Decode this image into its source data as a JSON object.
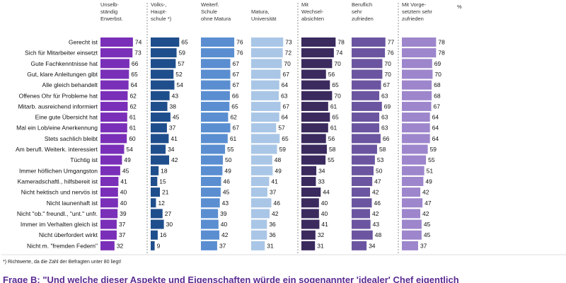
{
  "chart_data": {
    "type": "bar",
    "orientation": "horizontal",
    "title": "",
    "percent_sign": "%",
    "categories": [
      "Gerecht ist",
      "Sich für Mitarbeiter einsetzt",
      "Gute Fachkenntnisse hat",
      "Gut, klare Anleitungen gibt",
      "Alle gleich behandelt",
      "Offenes Ohr für Probleme hat",
      "Mitarb. ausreichend informiert",
      "Eine gute Übersicht hat",
      "Mal ein Lob/eine Anerkennung",
      "Stets sachlich bleibt",
      "Am berufl. Weiterk. interessiert",
      "Tüchtig ist",
      "Immer höflichen Umgangston",
      "Kameradschaftl., hilfsbereit ist",
      "Nicht hektisch und nervös ist",
      "Nicht launenhaft ist",
      "Nicht \"ob.\" freundl., \"unt.\" unfr.",
      "Immer im Verhalten gleich ist",
      "Nicht überfordert wirkt",
      "Nicht m. \"fremden Federn\""
    ],
    "series": [
      {
        "name": "Unselbständig Erwerbst.",
        "header": [
          "Unselb-",
          "ständig",
          "Erwerbst."
        ],
        "color": "#7a2fb8",
        "values": [
          74,
          73,
          66,
          65,
          64,
          62,
          62,
          61,
          61,
          60,
          54,
          49,
          45,
          41,
          40,
          40,
          39,
          37,
          37,
          32
        ]
      },
      {
        "name": "Volks-, Hauptschule *)",
        "header": [
          "Volks-,",
          "Haupt-",
          "schule *)"
        ],
        "color": "#1f4e8c",
        "values": [
          65,
          59,
          57,
          52,
          54,
          43,
          38,
          45,
          37,
          41,
          34,
          42,
          18,
          15,
          21,
          12,
          27,
          30,
          16,
          9
        ]
      },
      {
        "name": "Weiterf. Schule ohne Matura",
        "header": [
          "Weiterf.",
          "Schule",
          "ohne Matura"
        ],
        "color": "#5a8ed1",
        "values": [
          76,
          76,
          67,
          67,
          67,
          66,
          65,
          62,
          67,
          61,
          55,
          50,
          49,
          46,
          45,
          43,
          39,
          40,
          42,
          37
        ]
      },
      {
        "name": "Matura, Universität",
        "header": [
          "",
          "Matura,",
          "Universität"
        ],
        "color": "#a9c6e6",
        "values": [
          73,
          72,
          70,
          67,
          64,
          63,
          67,
          64,
          57,
          65,
          59,
          48,
          49,
          41,
          37,
          46,
          42,
          36,
          36,
          31
        ]
      },
      {
        "name": "Mit Wechselabsichten",
        "header": [
          "Mit",
          "Wechsel-",
          "absichten"
        ],
        "color": "#3a2a5e",
        "values": [
          78,
          74,
          70,
          56,
          65,
          70,
          61,
          65,
          61,
          56,
          58,
          55,
          34,
          33,
          44,
          40,
          40,
          41,
          32,
          31
        ]
      },
      {
        "name": "Beruflich sehr zufrieden",
        "header": [
          "Beruflich",
          "sehr",
          "zufrieden"
        ],
        "color": "#6b55a0",
        "values": [
          77,
          76,
          70,
          70,
          67,
          63,
          69,
          63,
          63,
          66,
          58,
          53,
          50,
          47,
          42,
          46,
          42,
          43,
          48,
          34
        ]
      },
      {
        "name": "Mit Vorgesetztem sehr zufrieden",
        "header": [
          "Mit Vorge-",
          "setztem sehr",
          "zufrieden"
        ],
        "color": "#9d86cc",
        "values": [
          78,
          78,
          69,
          70,
          68,
          68,
          67,
          64,
          64,
          64,
          59,
          55,
          51,
          49,
          42,
          47,
          42,
          45,
          45,
          37
        ]
      }
    ],
    "footnote": "*) Richtwerte, da die Zahl der Befragten unter 80 liegt!",
    "question": "Frage B: \"Und welche dieser Aspekte und Eigenschaften würde ein sogenannter 'idealer' Chef eigentlich"
  }
}
